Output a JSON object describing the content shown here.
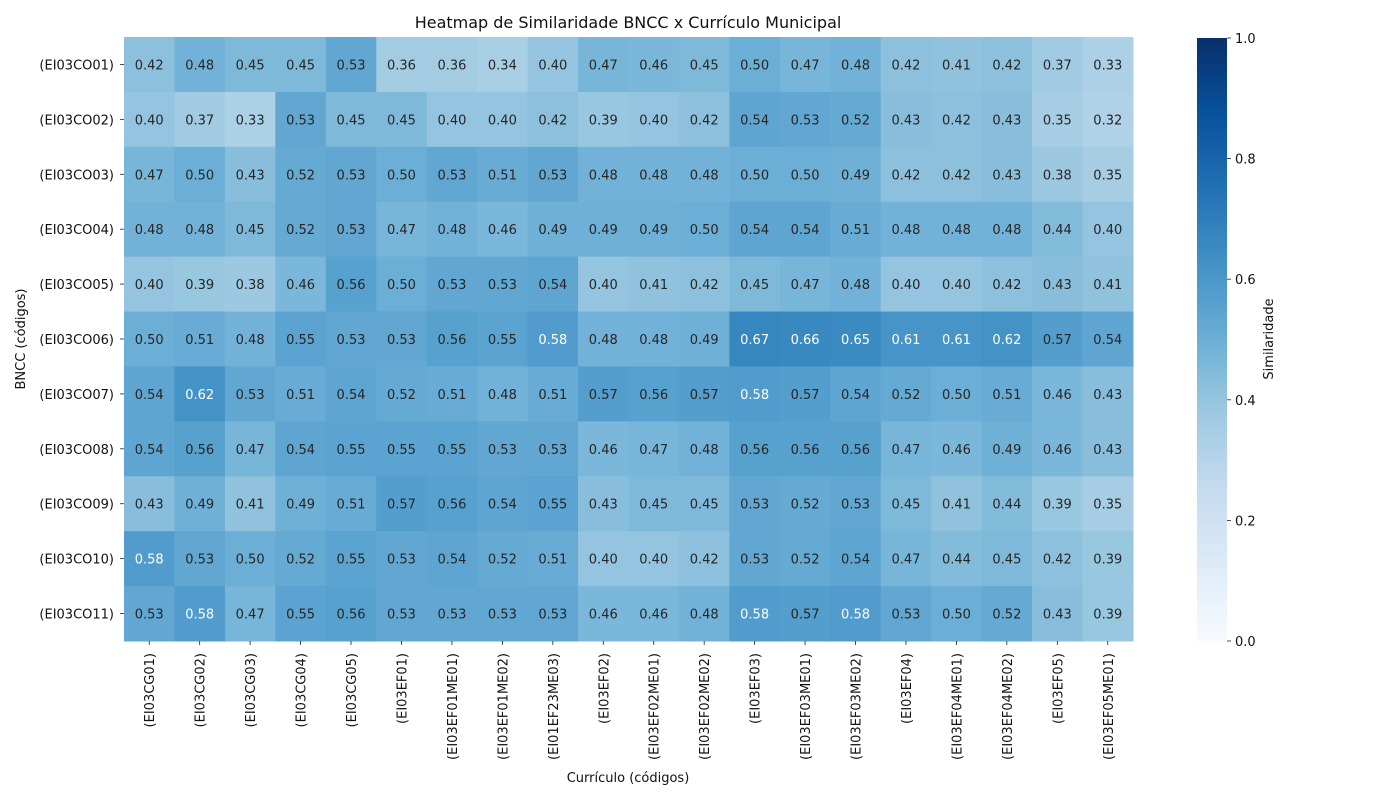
{
  "chart_data": {
    "type": "heatmap",
    "title": "Heatmap de Similaridade BNCC x Currículo Municipal",
    "xlabel": "Currículo (códigos)",
    "ylabel": "BNCC (códigos)",
    "colorbar_label": "Similaridade",
    "colorbar_range": [
      0,
      1
    ],
    "colorbar_ticks": [
      "0.0",
      "0.2",
      "0.4",
      "0.6",
      "0.8",
      "1.0"
    ],
    "colormap": [
      "#f7fbff",
      "#deebf7",
      "#c6dbef",
      "#9ecae1",
      "#6baed6",
      "#4292c6",
      "#2171b5",
      "#08519c",
      "#08306b"
    ],
    "x_labels": [
      "(EI03CG01)",
      "(EI03CG02)",
      "(EI03CG03)",
      "(EI03CG04)",
      "(EI03CG05)",
      "(EI03EF01)",
      "(EI03EF01ME01)",
      "(EI03EF01ME02)",
      "(EI01EF23ME03)",
      "(EI03EF02)",
      "(EI03EF02ME01)",
      "(EI03EF02ME02)",
      "(EI03EF03)",
      "(EI03EF03ME01)",
      "(EI03EF03ME02)",
      "(EI03EF04)",
      "(EI03EF04ME01)",
      "(EI03EF04ME02)",
      "(EI03EF05)",
      "(EI03EF05ME01)"
    ],
    "y_labels": [
      "(EI03CO01)",
      "(EI03CO02)",
      "(EI03CO03)",
      "(EI03CO04)",
      "(EI03CO05)",
      "(EI03CO06)",
      "(EI03CO07)",
      "(EI03CO08)",
      "(EI03CO09)",
      "(EI03CO10)",
      "(EI03CO11)"
    ],
    "values": [
      [
        0.42,
        0.48,
        0.45,
        0.45,
        0.53,
        0.36,
        0.36,
        0.34,
        0.4,
        0.47,
        0.46,
        0.45,
        0.5,
        0.47,
        0.48,
        0.42,
        0.41,
        0.42,
        0.37,
        0.33
      ],
      [
        0.4,
        0.37,
        0.33,
        0.53,
        0.45,
        0.45,
        0.4,
        0.4,
        0.42,
        0.39,
        0.4,
        0.42,
        0.54,
        0.53,
        0.52,
        0.43,
        0.42,
        0.43,
        0.35,
        0.32
      ],
      [
        0.47,
        0.5,
        0.43,
        0.52,
        0.53,
        0.5,
        0.53,
        0.51,
        0.53,
        0.48,
        0.48,
        0.48,
        0.5,
        0.5,
        0.49,
        0.42,
        0.42,
        0.43,
        0.38,
        0.35
      ],
      [
        0.48,
        0.48,
        0.45,
        0.52,
        0.53,
        0.47,
        0.48,
        0.46,
        0.49,
        0.49,
        0.49,
        0.5,
        0.54,
        0.54,
        0.51,
        0.48,
        0.48,
        0.48,
        0.44,
        0.4
      ],
      [
        0.4,
        0.39,
        0.38,
        0.46,
        0.56,
        0.5,
        0.53,
        0.53,
        0.54,
        0.4,
        0.41,
        0.42,
        0.45,
        0.47,
        0.48,
        0.4,
        0.4,
        0.42,
        0.43,
        0.41
      ],
      [
        0.5,
        0.51,
        0.48,
        0.55,
        0.53,
        0.53,
        0.56,
        0.55,
        0.58,
        0.48,
        0.48,
        0.49,
        0.67,
        0.66,
        0.65,
        0.61,
        0.61,
        0.62,
        0.57,
        0.54
      ],
      [
        0.54,
        0.62,
        0.53,
        0.51,
        0.54,
        0.52,
        0.51,
        0.48,
        0.51,
        0.57,
        0.56,
        0.57,
        0.58,
        0.57,
        0.54,
        0.52,
        0.5,
        0.51,
        0.46,
        0.43
      ],
      [
        0.54,
        0.56,
        0.47,
        0.54,
        0.55,
        0.55,
        0.55,
        0.53,
        0.53,
        0.46,
        0.47,
        0.48,
        0.56,
        0.56,
        0.56,
        0.47,
        0.46,
        0.49,
        0.46,
        0.43
      ],
      [
        0.43,
        0.49,
        0.41,
        0.49,
        0.51,
        0.57,
        0.56,
        0.54,
        0.55,
        0.43,
        0.45,
        0.45,
        0.53,
        0.52,
        0.53,
        0.45,
        0.41,
        0.44,
        0.39,
        0.35
      ],
      [
        0.58,
        0.53,
        0.5,
        0.52,
        0.55,
        0.53,
        0.54,
        0.52,
        0.51,
        0.4,
        0.4,
        0.42,
        0.53,
        0.52,
        0.54,
        0.47,
        0.44,
        0.45,
        0.42,
        0.39
      ],
      [
        0.53,
        0.58,
        0.47,
        0.55,
        0.56,
        0.53,
        0.53,
        0.53,
        0.53,
        0.46,
        0.46,
        0.48,
        0.58,
        0.57,
        0.58,
        0.53,
        0.5,
        0.52,
        0.43,
        0.39
      ]
    ],
    "value_format_decimals": 2
  }
}
